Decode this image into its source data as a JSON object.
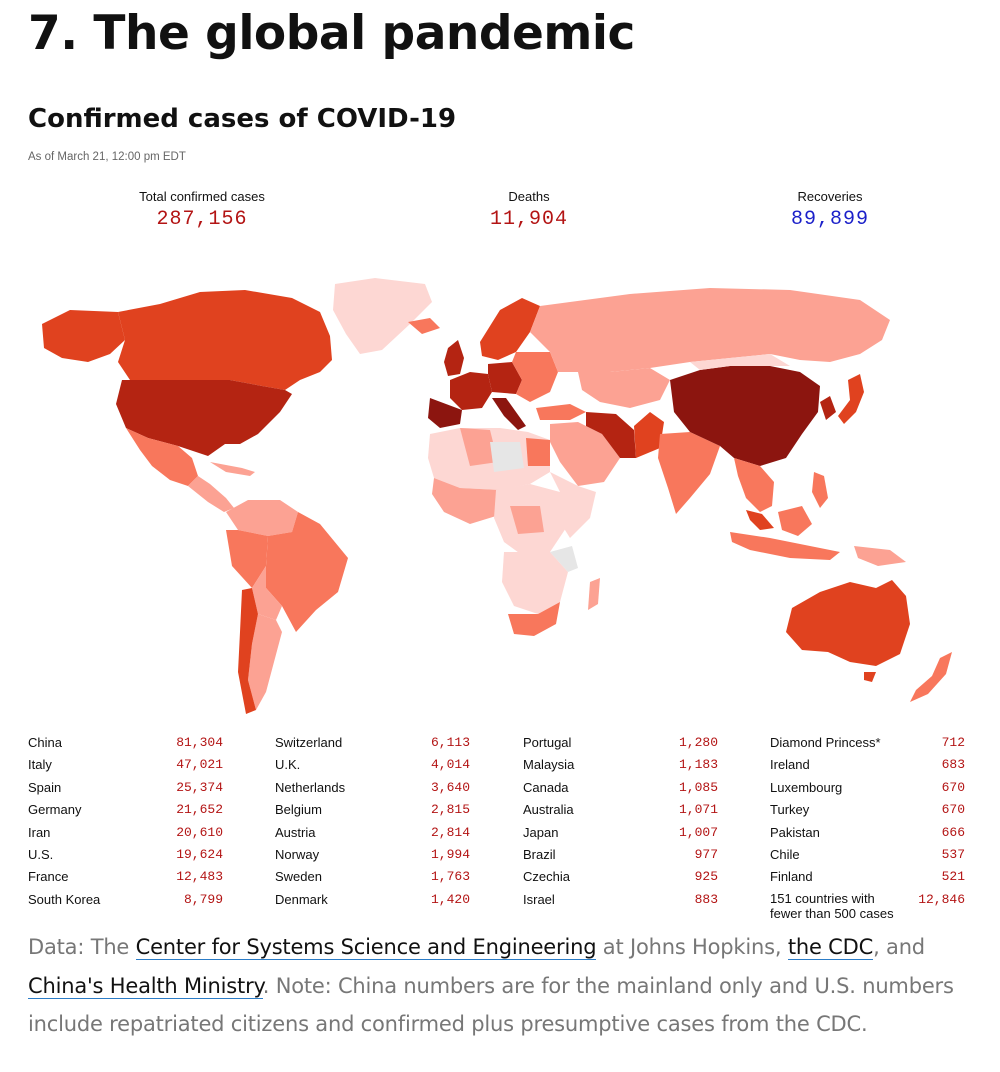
{
  "header": {
    "page_title": "7. The global pandemic",
    "chart_title": "Confirmed cases of COVID-19",
    "timestamp": "As of March 21, 12:00 pm EDT"
  },
  "stats": {
    "total": {
      "label": "Total confirmed cases",
      "value": "287,156",
      "color": "#b31414"
    },
    "deaths": {
      "label": "Deaths",
      "value": "11,904",
      "color": "#b31414"
    },
    "recoveries": {
      "label": "Recoveries",
      "value": "89,899",
      "color": "#1a1fc9"
    }
  },
  "map": {
    "color_scale": [
      "#fdd7d3",
      "#fca293",
      "#f8775c",
      "#e0421f",
      "#b42412",
      "#8c150f"
    ],
    "no_data_color": "#e6e6e6"
  },
  "table": [
    [
      {
        "country": "China",
        "cases": "81,304"
      },
      {
        "country": "Italy",
        "cases": "47,021"
      },
      {
        "country": "Spain",
        "cases": "25,374"
      },
      {
        "country": "Germany",
        "cases": "21,652"
      },
      {
        "country": "Iran",
        "cases": "20,610"
      },
      {
        "country": "U.S.",
        "cases": "19,624"
      },
      {
        "country": "France",
        "cases": "12,483"
      },
      {
        "country": "South Korea",
        "cases": "8,799"
      }
    ],
    [
      {
        "country": "Switzerland",
        "cases": "6,113"
      },
      {
        "country": "U.K.",
        "cases": "4,014"
      },
      {
        "country": "Netherlands",
        "cases": "3,640"
      },
      {
        "country": "Belgium",
        "cases": "2,815"
      },
      {
        "country": "Austria",
        "cases": "2,814"
      },
      {
        "country": "Norway",
        "cases": "1,994"
      },
      {
        "country": "Sweden",
        "cases": "1,763"
      },
      {
        "country": "Denmark",
        "cases": "1,420"
      }
    ],
    [
      {
        "country": "Portugal",
        "cases": "1,280"
      },
      {
        "country": "Malaysia",
        "cases": "1,183"
      },
      {
        "country": "Canada",
        "cases": "1,085"
      },
      {
        "country": "Australia",
        "cases": "1,071"
      },
      {
        "country": "Japan",
        "cases": "1,007"
      },
      {
        "country": "Brazil",
        "cases": "977"
      },
      {
        "country": "Czechia",
        "cases": "925"
      },
      {
        "country": "Israel",
        "cases": "883"
      }
    ],
    [
      {
        "country": "Diamond Princess*",
        "cases": "712"
      },
      {
        "country": "Ireland",
        "cases": "683"
      },
      {
        "country": "Luxembourg",
        "cases": "670"
      },
      {
        "country": "Turkey",
        "cases": "670"
      },
      {
        "country": "Pakistan",
        "cases": "666"
      },
      {
        "country": "Chile",
        "cases": "537"
      },
      {
        "country": "Finland",
        "cases": "521"
      },
      {
        "country": "151 countries with fewer than 500 cases",
        "cases": "12,846"
      }
    ]
  ],
  "footnote": {
    "prefix": "Data: The ",
    "link1": "Center for Systems Science and Engineering",
    "mid1": " at Johns Hopkins, ",
    "link2": "the CDC",
    "mid2": ", and ",
    "link3": "China's Health Ministry",
    "suffix": ". Note: China numbers are for the mainland only and U.S. numbers include repatriated citizens and confirmed plus presumptive cases from the CDC."
  }
}
